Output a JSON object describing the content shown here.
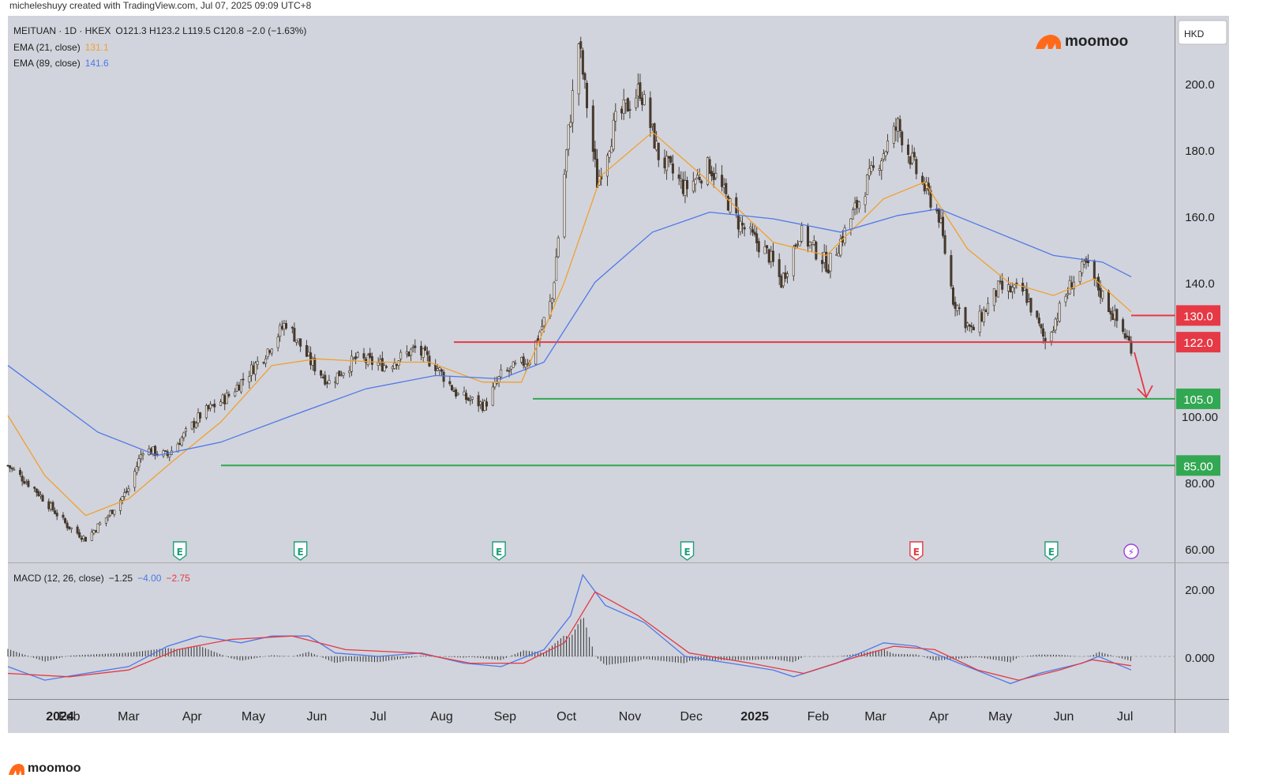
{
  "header": {
    "credit": "micheleshuyy created with TradingView.com, Jul 07, 2025 09:09 UTC+8"
  },
  "legend": {
    "symbol_line": "MEITUAN · 1D · HKEX",
    "ohlc": "O121.3  H123.2  L119.5  C120.8  −2.0 (−1.63%)",
    "ema21_label": "EMA (21, close)",
    "ema21_value": "131.1",
    "ema89_label": "EMA (89, close)",
    "ema89_value": "141.6"
  },
  "brand": {
    "name": "moomoo"
  },
  "currency": "HKD",
  "macd_legend": {
    "label": "MACD (12, 26, close)",
    "hist": "−1.25",
    "macd": "−4.00",
    "signal": "−2.75"
  },
  "colors": {
    "bg": "#d1d4dc",
    "ema21": "#f0a030",
    "ema89": "#4f78e8",
    "resistance": "#e53945",
    "support": "#32a852",
    "earnings": "#1f9d7a",
    "earnings_red": "#e53945",
    "dividend": "#a03de0"
  },
  "chart_data": [
    {
      "type": "line",
      "subtype": "candlestick",
      "title": "MEITUAN · 1D · HKEX",
      "y_axis_labels": [
        "200.0",
        "180.0",
        "160.0",
        "140.0",
        "100.00",
        "80.00",
        "60.00"
      ],
      "x_axis_labels": [
        "2024",
        "Feb",
        "Mar",
        "Apr",
        "May",
        "Jun",
        "Jul",
        "Aug",
        "Sep",
        "Oct",
        "Nov",
        "Dec",
        "2025",
        "Feb",
        "Mar",
        "Apr",
        "May",
        "Jun",
        "Jul"
      ],
      "price_path": [
        [
          "2024-01-02",
          85
        ],
        [
          "2024-01-15",
          78
        ],
        [
          "2024-01-31",
          67
        ],
        [
          "2024-02-09",
          63
        ],
        [
          "2024-02-20",
          70
        ],
        [
          "2024-03-01",
          78
        ],
        [
          "2024-03-08",
          90
        ],
        [
          "2024-03-20",
          88
        ],
        [
          "2024-04-05",
          100
        ],
        [
          "2024-04-19",
          106
        ],
        [
          "2024-05-06",
          118
        ],
        [
          "2024-05-17",
          128
        ],
        [
          "2024-05-29",
          116
        ],
        [
          "2024-06-07",
          110
        ],
        [
          "2024-06-20",
          117
        ],
        [
          "2024-07-05",
          115
        ],
        [
          "2024-07-19",
          120
        ],
        [
          "2024-07-29",
          115
        ],
        [
          "2024-08-09",
          106
        ],
        [
          "2024-08-22",
          103
        ],
        [
          "2024-08-30",
          112
        ],
        [
          "2024-09-13",
          117
        ],
        [
          "2024-09-24",
          135
        ],
        [
          "2024-10-02",
          185
        ],
        [
          "2024-10-07",
          212
        ],
        [
          "2024-10-16",
          170
        ],
        [
          "2024-10-25",
          188
        ],
        [
          "2024-11-06",
          198
        ],
        [
          "2024-11-15",
          178
        ],
        [
          "2024-11-28",
          168
        ],
        [
          "2024-12-10",
          175
        ],
        [
          "2024-12-24",
          158
        ],
        [
          "2025-01-08",
          148
        ],
        [
          "2025-01-14",
          140
        ],
        [
          "2025-01-23",
          155
        ],
        [
          "2025-02-06",
          145
        ],
        [
          "2025-02-14",
          155
        ],
        [
          "2025-02-25",
          170
        ],
        [
          "2025-03-12",
          187
        ],
        [
          "2025-03-21",
          173
        ],
        [
          "2025-04-01",
          160
        ],
        [
          "2025-04-08",
          135
        ],
        [
          "2025-04-17",
          125
        ],
        [
          "2025-04-30",
          138
        ],
        [
          "2025-05-13",
          137
        ],
        [
          "2025-05-23",
          122
        ],
        [
          "2025-06-05",
          140
        ],
        [
          "2025-06-12",
          145
        ],
        [
          "2025-06-20",
          136
        ],
        [
          "2025-07-04",
          120.8
        ]
      ],
      "series": [
        {
          "name": "EMA (21, close)",
          "last": 131.1,
          "points": [
            [
              "2024-01-02",
              100
            ],
            [
              "2024-01-20",
              82
            ],
            [
              "2024-02-09",
              70
            ],
            [
              "2024-03-01",
              75
            ],
            [
              "2024-03-22",
              86
            ],
            [
              "2024-04-15",
              98
            ],
            [
              "2024-05-10",
              115
            ],
            [
              "2024-06-01",
              117
            ],
            [
              "2024-07-01",
              116
            ],
            [
              "2024-07-26",
              116
            ],
            [
              "2024-08-21",
              110
            ],
            [
              "2024-09-09",
              110
            ],
            [
              "2024-09-30",
              140
            ],
            [
              "2024-10-18",
              172
            ],
            [
              "2024-11-12",
              185
            ],
            [
              "2024-12-10",
              170
            ],
            [
              "2025-01-10",
              152
            ],
            [
              "2025-02-05",
              148
            ],
            [
              "2025-03-05",
              165
            ],
            [
              "2025-03-25",
              170
            ],
            [
              "2025-04-15",
              150
            ],
            [
              "2025-05-05",
              140
            ],
            [
              "2025-05-27",
              136
            ],
            [
              "2025-06-16",
              141
            ],
            [
              "2025-07-04",
              131.1
            ]
          ]
        },
        {
          "name": "EMA (89, close)",
          "last": 141.6,
          "points": [
            [
              "2024-01-02",
              115
            ],
            [
              "2024-02-15",
              95
            ],
            [
              "2024-03-15",
              88
            ],
            [
              "2024-04-15",
              92
            ],
            [
              "2024-05-20",
              100
            ],
            [
              "2024-06-25",
              108
            ],
            [
              "2024-07-29",
              112
            ],
            [
              "2024-08-30",
              111
            ],
            [
              "2024-09-20",
              116
            ],
            [
              "2024-10-15",
              140
            ],
            [
              "2024-11-12",
              155
            ],
            [
              "2024-12-10",
              161
            ],
            [
              "2025-01-10",
              159
            ],
            [
              "2025-02-12",
              155
            ],
            [
              "2025-03-12",
              160
            ],
            [
              "2025-04-01",
              162
            ],
            [
              "2025-04-25",
              156
            ],
            [
              "2025-05-27",
              148
            ],
            [
              "2025-06-20",
              146
            ],
            [
              "2025-07-04",
              141.6
            ]
          ]
        }
      ],
      "horizontal_levels": [
        {
          "label": "130.0",
          "value": 130.0,
          "color": "resistance"
        },
        {
          "label": "122.0",
          "value": 122.0,
          "color": "resistance"
        },
        {
          "label": "105.0",
          "value": 105.0,
          "color": "support"
        },
        {
          "label": "85.00",
          "value": 85.0,
          "color": "support"
        }
      ],
      "events": [
        {
          "date": "2024-03-26",
          "kind": "E",
          "color": "earnings"
        },
        {
          "date": "2024-05-24",
          "kind": "E",
          "color": "earnings"
        },
        {
          "date": "2024-08-29",
          "kind": "E",
          "color": "earnings"
        },
        {
          "date": "2024-11-29",
          "kind": "E",
          "color": "earnings"
        },
        {
          "date": "2025-03-21",
          "kind": "E",
          "color": "earnings_red"
        },
        {
          "date": "2025-05-26",
          "kind": "E",
          "color": "earnings"
        },
        {
          "date": "2025-07-04",
          "kind": "⚡",
          "color": "dividend"
        }
      ]
    },
    {
      "type": "line",
      "subtype": "macd",
      "title": "MACD (12, 26, close)",
      "y_axis_labels": [
        "20.00",
        "0.000"
      ],
      "series": [
        {
          "name": "MACD",
          "last": -4.0,
          "points": [
            [
              "2024-01-02",
              -3
            ],
            [
              "2024-01-20",
              -7
            ],
            [
              "2024-02-09",
              -5
            ],
            [
              "2024-03-01",
              -3
            ],
            [
              "2024-03-20",
              3
            ],
            [
              "2024-04-05",
              6
            ],
            [
              "2024-04-25",
              4
            ],
            [
              "2024-05-10",
              6
            ],
            [
              "2024-05-28",
              6
            ],
            [
              "2024-06-10",
              1
            ],
            [
              "2024-07-01",
              0
            ],
            [
              "2024-07-22",
              1
            ],
            [
              "2024-08-12",
              -2
            ],
            [
              "2024-08-30",
              -3
            ],
            [
              "2024-09-20",
              2
            ],
            [
              "2024-10-03",
              12
            ],
            [
              "2024-10-09",
              24
            ],
            [
              "2024-10-20",
              15
            ],
            [
              "2024-11-08",
              10
            ],
            [
              "2024-11-28",
              0
            ],
            [
              "2024-12-20",
              -2
            ],
            [
              "2025-01-10",
              -4
            ],
            [
              "2025-01-20",
              -6
            ],
            [
              "2025-02-10",
              -2
            ],
            [
              "2025-03-05",
              4
            ],
            [
              "2025-03-21",
              3
            ],
            [
              "2025-04-15",
              -3
            ],
            [
              "2025-05-06",
              -8
            ],
            [
              "2025-05-20",
              -5
            ],
            [
              "2025-06-10",
              -2
            ],
            [
              "2025-06-18",
              0
            ],
            [
              "2025-07-04",
              -4.0
            ]
          ]
        },
        {
          "name": "Signal",
          "last": -2.75,
          "points": [
            [
              "2024-01-02",
              -5
            ],
            [
              "2024-02-01",
              -6
            ],
            [
              "2024-03-01",
              -4
            ],
            [
              "2024-03-25",
              2
            ],
            [
              "2024-04-20",
              5
            ],
            [
              "2024-05-20",
              6
            ],
            [
              "2024-06-15",
              2
            ],
            [
              "2024-07-20",
              1
            ],
            [
              "2024-08-15",
              -2
            ],
            [
              "2024-09-10",
              -2
            ],
            [
              "2024-09-30",
              4
            ],
            [
              "2024-10-15",
              19
            ],
            [
              "2024-11-05",
              12
            ],
            [
              "2024-11-30",
              1
            ],
            [
              "2024-12-30",
              -2
            ],
            [
              "2025-01-25",
              -5
            ],
            [
              "2025-02-15",
              -1
            ],
            [
              "2025-03-10",
              3
            ],
            [
              "2025-03-30",
              2
            ],
            [
              "2025-04-20",
              -4
            ],
            [
              "2025-05-10",
              -7
            ],
            [
              "2025-05-30",
              -4
            ],
            [
              "2025-06-15",
              -1
            ],
            [
              "2025-07-04",
              -2.75
            ]
          ]
        }
      ]
    }
  ]
}
